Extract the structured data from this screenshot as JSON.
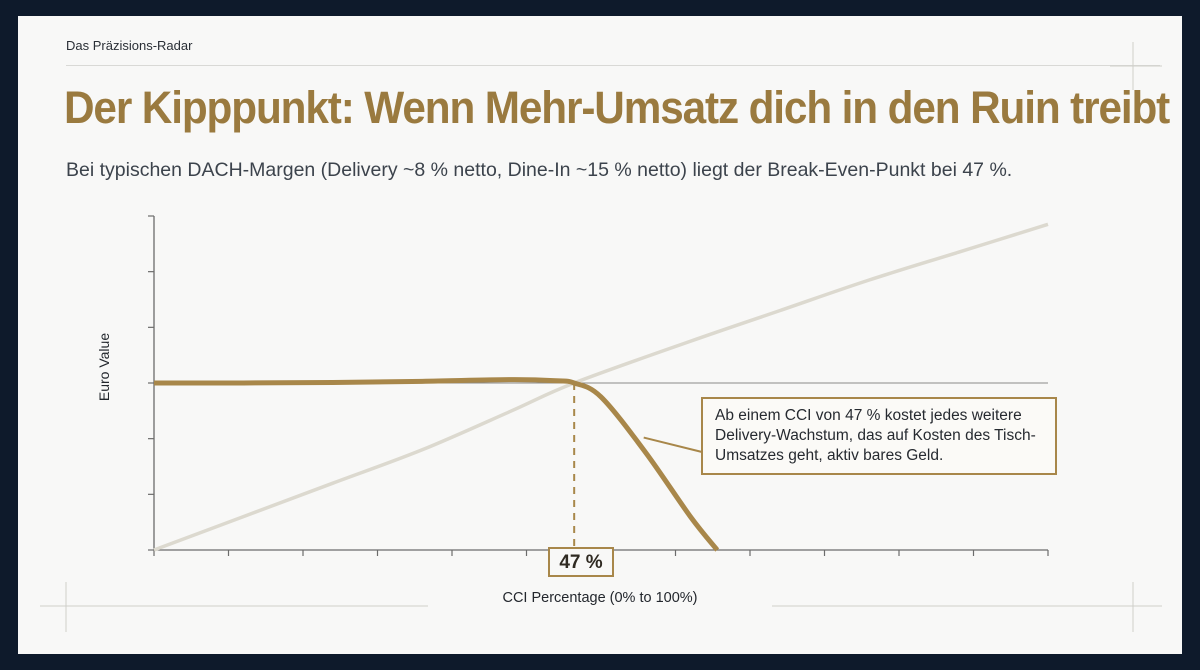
{
  "slide": {
    "brand": "Das Präzisions-Radar",
    "title": "Der Kipppunkt: Wenn Mehr-Umsatz dich in den Ruin treibt",
    "subtitle": "Bei typischen DACH-Margen (Delivery ~8 % netto, Dine-In ~15 % netto) liegt der Break-Even-Punkt bei 47 %."
  },
  "chart_data": {
    "type": "line",
    "xlabel": "CCI Percentage (0% to 100%)",
    "ylabel": "Euro Value",
    "xlim": [
      0,
      100
    ],
    "ylim": [
      0,
      6
    ],
    "grid": false,
    "series": [
      {
        "color": "#a8874a",
        "x": [
          0,
          10,
          20,
          30,
          40,
          45,
          47,
          50,
          55,
          60,
          63
        ],
        "values": [
          3.0,
          3.0,
          3.01,
          3.03,
          3.06,
          3.04,
          3.0,
          2.75,
          1.75,
          0.6,
          0
        ]
      },
      {
        "color": "#dcd9cf",
        "x": [
          0,
          10,
          20,
          30,
          40,
          47,
          60,
          70,
          80,
          90,
          100
        ],
        "values": [
          0,
          0.6,
          1.2,
          1.8,
          2.5,
          3.0,
          3.75,
          4.3,
          4.85,
          5.35,
          5.85
        ]
      }
    ],
    "reference_line": {
      "y": 3.0
    },
    "marker": {
      "x": 47,
      "label": "47 %"
    },
    "annotation": "Ab einem CCI von 47 % kostet jedes weitere Delivery-Wachstum, das auf Kosten des Tisch-Umsatzes geht, aktiv bares Geld."
  }
}
